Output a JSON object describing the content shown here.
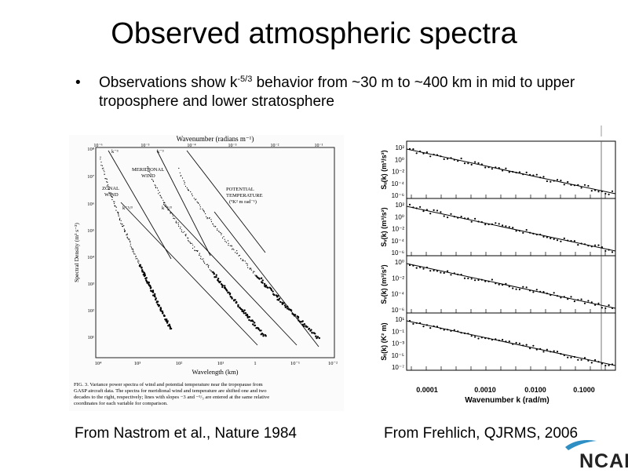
{
  "slide": {
    "title": "Observed atmospheric spectra",
    "bullet_prefix": "Observations show k",
    "bullet_exponent": "-5/3",
    "bullet_suffix": " behavior from ~30 m to ~400 km in mid to upper troposphere and lower stratosphere",
    "left_caption": "From Nastrom et al., Nature 1984",
    "right_caption": "From Frehlich, QJRMS, 2006",
    "logo_text": "NCAR"
  },
  "left_figure": {
    "top_axis_label": "Wavenumber (radians m⁻¹)",
    "top_ticks": [
      "10⁻⁶",
      "10⁻⁵",
      "10⁻⁴",
      "10⁻³",
      "10⁻²",
      "10⁻¹"
    ],
    "bottom_axis_label": "Wavelength (km)",
    "bottom_ticks": [
      "10⁴",
      "10³",
      "10²",
      "10¹",
      "1",
      "10⁻¹",
      "10⁻²"
    ],
    "y_axis_label": "Spectral Density (m³ s⁻²)",
    "y_ticks": [
      "10⁸",
      "10⁷",
      "10⁶",
      "10⁵",
      "10⁴",
      "10³",
      "10²",
      "10¹"
    ],
    "annotations": {
      "k3_left": "k⁻³",
      "k3_right": "k⁻³",
      "k53_left": "k⁻⁵/³",
      "k53_right": "k⁻⁵/³",
      "meridional": "MERIDIONAL",
      "meridional2": "WIND",
      "zonal": "ZONAL",
      "zonal2": "WIND",
      "potential": "POTENTIAL",
      "potential2": "TEMPERATURE",
      "potential3": "(ºK² m rad⁻¹)"
    },
    "caption_lines": [
      "FIG. 3. Variance power spectra of wind and potential temperature near the tropopause from",
      "GASP aircraft data. The spectra for meridional wind and temperature are shifted one and two",
      "decades to the right, respectively; lines with slopes −3 and −⁵/₃ are entered at the same relative",
      "coordinates for each variable for comparison."
    ]
  },
  "right_figure": {
    "x_ticks": [
      "0.0001",
      "0.0010",
      "0.0100",
      "0.1000"
    ],
    "x_label": "Wavenumber k (rad/m)",
    "panels": [
      {
        "ylabel": "Sᵤ(k) (m³/s²)",
        "ticks": [
          "10²",
          "10⁰",
          "10⁻²",
          "10⁻⁴",
          "10⁻⁶"
        ]
      },
      {
        "ylabel": "Sᵥ(k) (m³/s²)",
        "ticks": [
          "10²",
          "10⁰",
          "10⁻²",
          "10⁻⁴",
          "10⁻⁶"
        ]
      },
      {
        "ylabel": "Sᵥ(k) (m³/s²)",
        "ticks": [
          "10⁰",
          "10⁻²",
          "10⁻⁴",
          "10⁻⁶"
        ]
      },
      {
        "ylabel": "Sₜ(k) (K² m)",
        "ticks": [
          "10¹",
          "10⁻¹",
          "10⁻³",
          "10⁻⁵",
          "10⁻⁷"
        ]
      }
    ]
  }
}
